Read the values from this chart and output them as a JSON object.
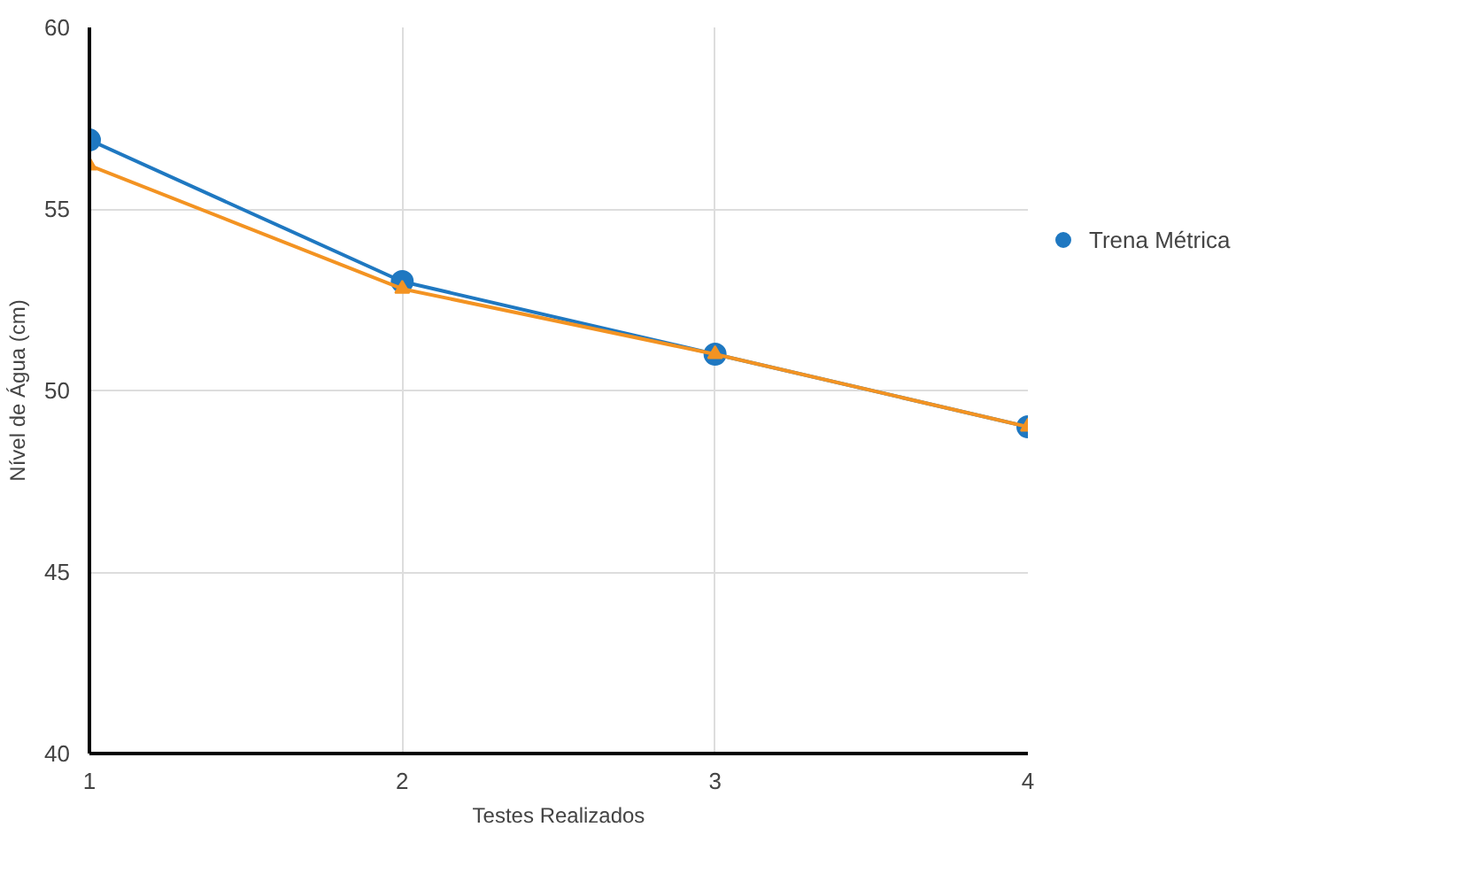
{
  "chart_data": {
    "type": "line",
    "xlabel": "Testes Realizados",
    "ylabel": "Nível de Água (cm)",
    "x": [
      1,
      2,
      3,
      4
    ],
    "series": [
      {
        "name": "Trena Métrica",
        "color": "#1f78c1",
        "marker": "circle",
        "values": [
          56.9,
          53.0,
          51.0,
          49.0
        ]
      },
      {
        "color": "#f39322",
        "marker": "triangle",
        "values": [
          56.2,
          52.8,
          51.0,
          49.0
        ]
      }
    ],
    "xlim": [
      1,
      4
    ],
    "xticks": [
      1,
      2,
      3,
      4
    ],
    "ylim": [
      40,
      60
    ],
    "yticks": [
      40,
      45,
      50,
      55,
      60
    ],
    "grid": true,
    "legend": "right"
  }
}
